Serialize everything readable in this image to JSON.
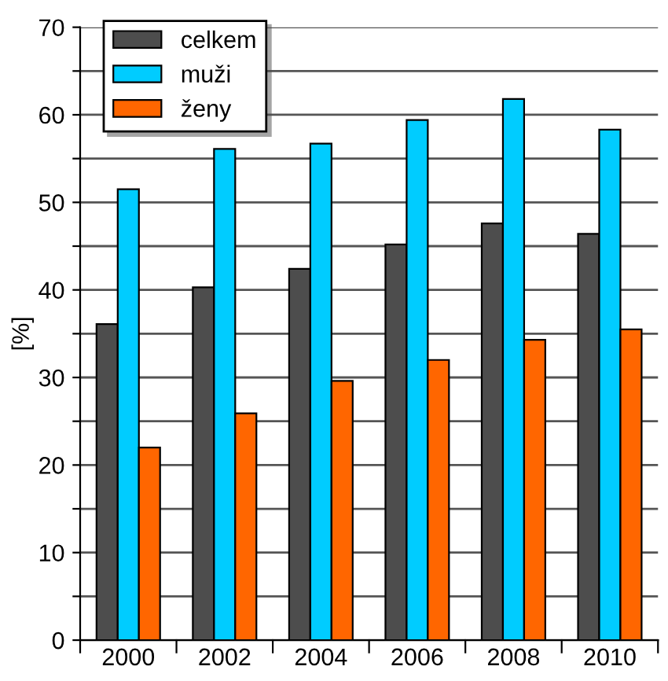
{
  "chart_data": {
    "type": "bar",
    "ylabel": "[%]",
    "categories": [
      "2000",
      "2002",
      "2004",
      "2006",
      "2008",
      "2010"
    ],
    "series": [
      {
        "name": "celkem",
        "color": "#4d4d4d",
        "values": [
          36.1,
          40.3,
          42.4,
          45.2,
          47.6,
          46.4
        ]
      },
      {
        "name": "muži",
        "color": "#00ccff",
        "values": [
          51.5,
          56.1,
          56.7,
          59.4,
          61.8,
          58.3
        ]
      },
      {
        "name": "ženy",
        "color": "#ff6600",
        "values": [
          22.0,
          25.9,
          29.6,
          32.0,
          34.3,
          35.5
        ]
      }
    ],
    "ylim": [
      0,
      70
    ],
    "yticks": [
      0,
      {
        "value": 5,
        "label": null
      },
      10,
      {
        "value": 15,
        "label": null
      },
      20,
      {
        "value": 25,
        "label": null
      },
      30,
      {
        "value": 35,
        "label": null
      },
      40,
      {
        "value": 45,
        "label": null
      },
      50,
      {
        "value": 55,
        "label": null
      },
      60,
      {
        "value": 65,
        "label": null
      },
      70
    ],
    "grid": "y",
    "legend": "top left"
  }
}
